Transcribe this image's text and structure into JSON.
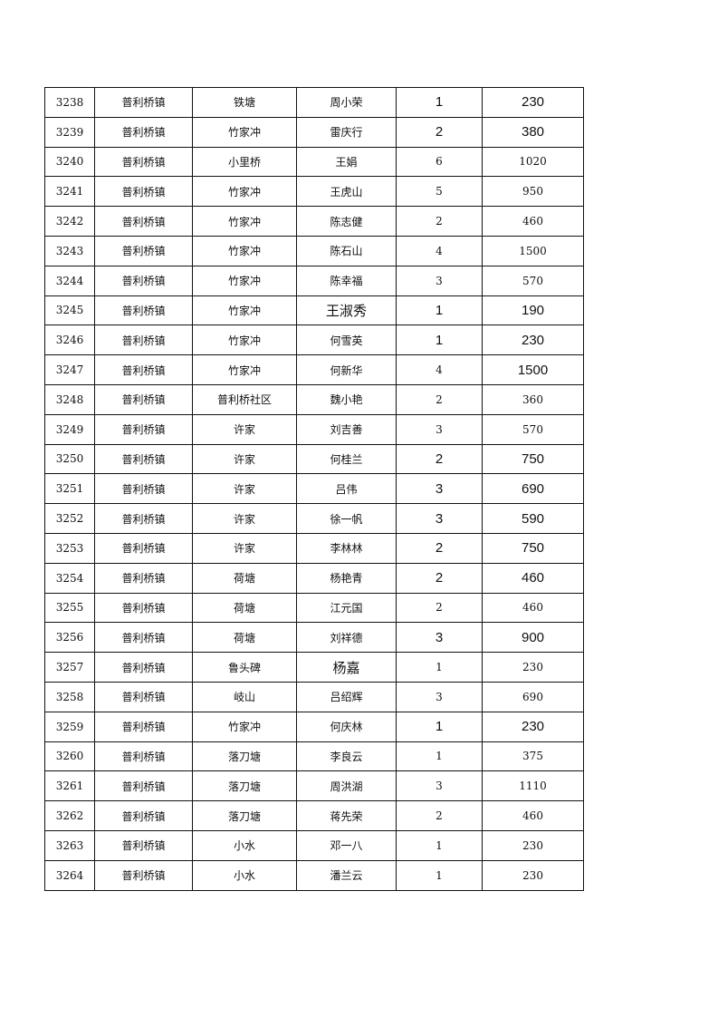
{
  "rows": [
    [
      "3238",
      "普利桥镇",
      "铁塘",
      "周小荣",
      "1",
      "230"
    ],
    [
      "3239",
      "普利桥镇",
      "竹家冲",
      "雷庆行",
      "2",
      "380"
    ],
    [
      "3240",
      "普利桥镇",
      "小里桥",
      "王娟",
      "6",
      "1020"
    ],
    [
      "3241",
      "普利桥镇",
      "竹家冲",
      "王虎山",
      "5",
      "950"
    ],
    [
      "3242",
      "普利桥镇",
      "竹家冲",
      "陈志健",
      "2",
      "460"
    ],
    [
      "3243",
      "普利桥镇",
      "竹家冲",
      "陈石山",
      "4",
      "1500"
    ],
    [
      "3244",
      "普利桥镇",
      "竹家冲",
      "陈幸福",
      "3",
      "570"
    ],
    [
      "3245",
      "普利桥镇",
      "竹家冲",
      "王淑秀",
      "1",
      "190"
    ],
    [
      "3246",
      "普利桥镇",
      "竹家冲",
      "何雪英",
      "1",
      "230"
    ],
    [
      "3247",
      "普利桥镇",
      "竹家冲",
      "何新华",
      "4",
      "1500"
    ],
    [
      "3248",
      "普利桥镇",
      "普利桥社区",
      "魏小艳",
      "2",
      "360"
    ],
    [
      "3249",
      "普利桥镇",
      "许家",
      "刘吉善",
      "3",
      "570"
    ],
    [
      "3250",
      "普利桥镇",
      "许家",
      "何桂兰",
      "2",
      "750"
    ],
    [
      "3251",
      "普利桥镇",
      "许家",
      "吕伟",
      "3",
      "690"
    ],
    [
      "3252",
      "普利桥镇",
      "许家",
      "徐一帆",
      "3",
      "590"
    ],
    [
      "3253",
      "普利桥镇",
      "许家",
      "李林林",
      "2",
      "750"
    ],
    [
      "3254",
      "普利桥镇",
      "荷塘",
      "杨艳青",
      "2",
      "460"
    ],
    [
      "3255",
      "普利桥镇",
      "荷塘",
      "江元国",
      "2",
      "460"
    ],
    [
      "3256",
      "普利桥镇",
      "荷塘",
      "刘祥德",
      "3",
      "900"
    ],
    [
      "3257",
      "普利桥镇",
      "鲁头碑",
      "杨嘉",
      "1",
      "230"
    ],
    [
      "3258",
      "普利桥镇",
      "岐山",
      "吕绍辉",
      "3",
      "690"
    ],
    [
      "3259",
      "普利桥镇",
      "竹家冲",
      "何庆林",
      "1",
      "230"
    ],
    [
      "3260",
      "普利桥镇",
      "落刀塘",
      "李良云",
      "1",
      "375"
    ],
    [
      "3261",
      "普利桥镇",
      "落刀塘",
      "周洪湖",
      "3",
      "1110"
    ],
    [
      "3262",
      "普利桥镇",
      "落刀塘",
      "蒋先荣",
      "2",
      "460"
    ],
    [
      "3263",
      "普利桥镇",
      "小水",
      "邓一八",
      "1",
      "230"
    ],
    [
      "3264",
      "普利桥镇",
      "小水",
      "潘兰云",
      "1",
      "230"
    ]
  ]
}
